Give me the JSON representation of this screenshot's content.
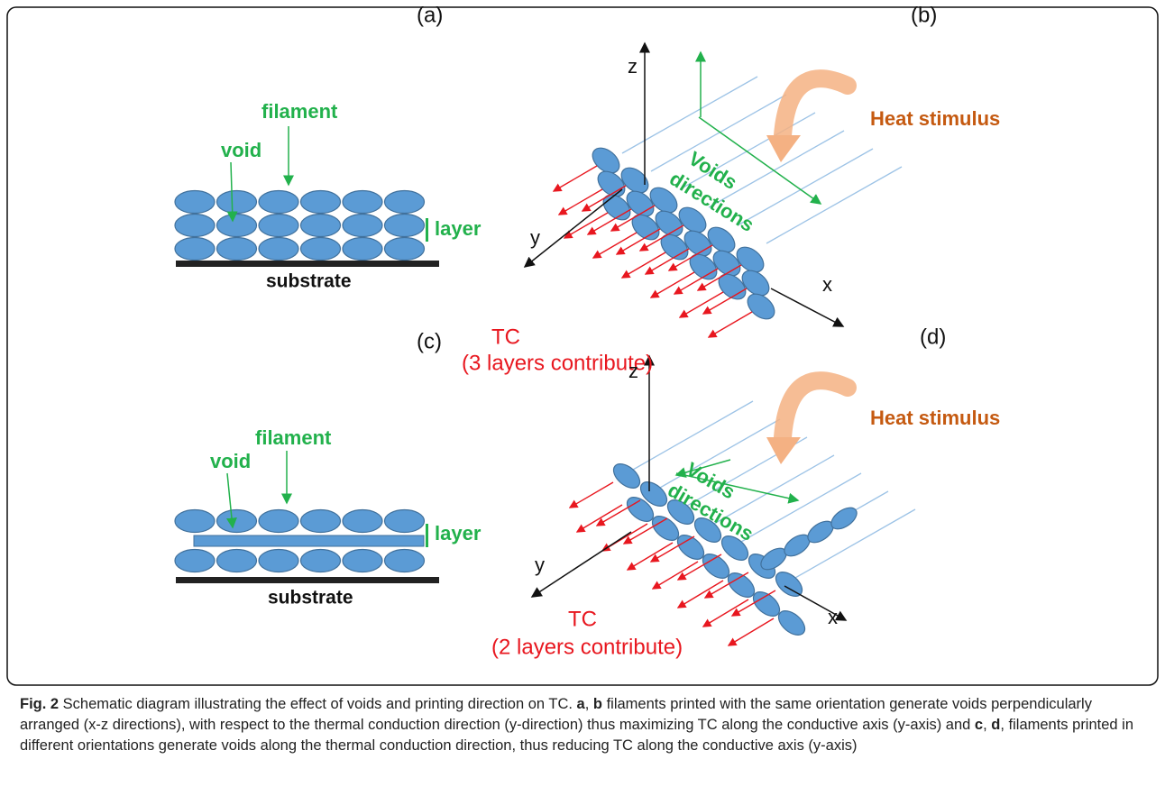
{
  "panels": {
    "a": {
      "label": "(a)",
      "filament": "filament",
      "void": "void",
      "layer": "layer",
      "substrate": "substrate"
    },
    "b": {
      "label": "(b)",
      "z": "z",
      "y": "y",
      "x": "x",
      "voids": "Voids",
      "directions": "directions",
      "heat": "Heat stimulus",
      "tc": "TC",
      "tc_note": "(3 layers contribute)"
    },
    "c": {
      "label": "(c)",
      "filament": "filament",
      "void": "void",
      "layer": "layer",
      "substrate": "substrate"
    },
    "d": {
      "label": "(d)",
      "z": "z",
      "y": "y",
      "x": "x",
      "voids": "Voids",
      "directions": "directions",
      "heat": "Heat stimulus",
      "tc": "TC",
      "tc_note": "(2 layers contribute)"
    }
  },
  "caption": {
    "runs": [
      {
        "text": "Fig. 2",
        "bold": true
      },
      {
        "text": " Schematic diagram illustrating the effect of voids and printing direction on TC. ",
        "bold": false
      },
      {
        "text": "a",
        "bold": true
      },
      {
        "text": ", ",
        "bold": false
      },
      {
        "text": "b",
        "bold": true
      },
      {
        "text": " filaments printed with the same orientation generate voids perpendicularly arranged (x-z directions), with respect to the thermal conduction direction (y-direction) thus maximizing TC along the conductive axis (y-axis) and ",
        "bold": false
      },
      {
        "text": "c",
        "bold": true
      },
      {
        "text": ", ",
        "bold": false
      },
      {
        "text": "d",
        "bold": true
      },
      {
        "text": ", filaments printed in different orientations generate voids along the thermal conduction direction, thus reducing TC along the conductive axis (y-axis)",
        "bold": false
      }
    ]
  }
}
